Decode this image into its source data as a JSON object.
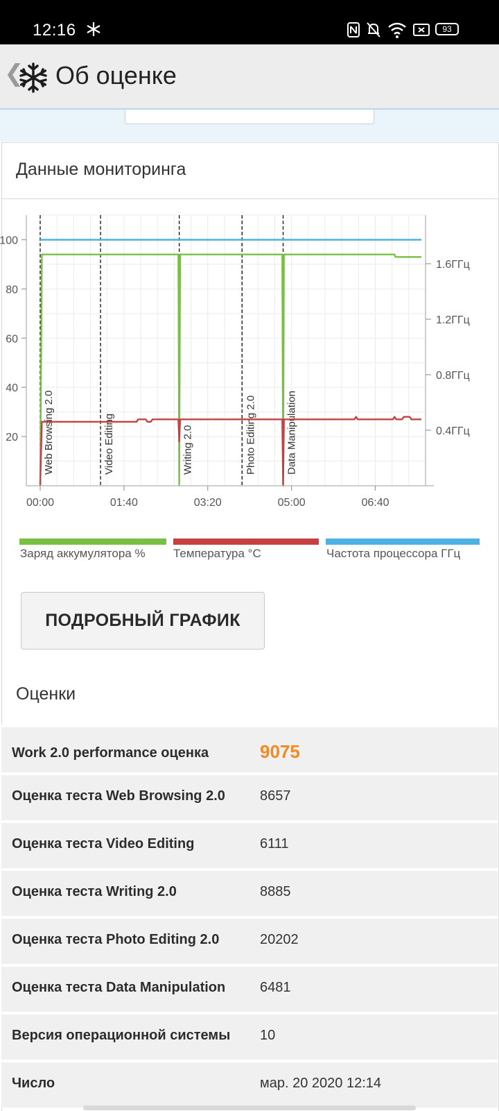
{
  "status_bar": {
    "time": "12:16",
    "battery": "93"
  },
  "app_bar": {
    "back_glyph": "❮",
    "title": "Об оценке"
  },
  "monitoring": {
    "heading": "Данные мониторинга",
    "detail_button": "ПОДРОБНЫЙ ГРАФИК"
  },
  "chart_data": {
    "type": "line",
    "x_ticks": [
      "00:00",
      "01:40",
      "03:20",
      "05:00",
      "06:40"
    ],
    "x_range_seconds": [
      0,
      460
    ],
    "y_left_ticks": [
      "100",
      "80",
      "60",
      "40",
      "20"
    ],
    "y_left_range": [
      0,
      110
    ],
    "y_right_ticks": [
      "1.6ГГц",
      "1.2ГГц",
      "0.8ГГц",
      "0.4ГГц"
    ],
    "y_right_range_ghz": [
      0,
      1.95
    ],
    "grid": true,
    "markers": [
      {
        "label": "Web Browsing 2.0",
        "t": 0
      },
      {
        "label": "Video Editing",
        "t": 72
      },
      {
        "label": "Writing 2.0",
        "t": 166
      },
      {
        "label": "Photo Editing 2.0",
        "t": 241
      },
      {
        "label": "Data Manipulation",
        "t": 290
      }
    ],
    "series": [
      {
        "name": "Заряд аккумулятора %",
        "color": "#77c044",
        "points": [
          [
            0,
            0
          ],
          [
            2,
            94
          ],
          [
            165,
            94
          ],
          [
            166,
            0
          ],
          [
            167,
            94
          ],
          [
            289,
            94
          ],
          [
            290,
            0
          ],
          [
            291,
            94
          ],
          [
            423,
            94
          ],
          [
            424,
            93
          ],
          [
            455,
            93
          ]
        ]
      },
      {
        "name": "Температура °C",
        "color": "#c64040",
        "points": [
          [
            0,
            0
          ],
          [
            2,
            26
          ],
          [
            115,
            26
          ],
          [
            117,
            27
          ],
          [
            126,
            27
          ],
          [
            128,
            26
          ],
          [
            132,
            26
          ],
          [
            134,
            27
          ],
          [
            165,
            27
          ],
          [
            166,
            18
          ],
          [
            167,
            27
          ],
          [
            289,
            27
          ],
          [
            290,
            0
          ],
          [
            291,
            27
          ],
          [
            375,
            27
          ],
          [
            377,
            28
          ],
          [
            379,
            27
          ],
          [
            421,
            27
          ],
          [
            423,
            28
          ],
          [
            425,
            27
          ],
          [
            432,
            27
          ],
          [
            434,
            28
          ],
          [
            441,
            28
          ],
          [
            443,
            27
          ],
          [
            455,
            27
          ]
        ]
      },
      {
        "name": "Частота процессора ГГц",
        "color": "#4bb2e3",
        "points": [
          [
            0,
            100
          ],
          [
            455,
            100
          ]
        ]
      }
    ]
  },
  "scores_section": {
    "heading": "Оценки",
    "rows": [
      {
        "label": "Work 2.0 performance оценка",
        "value": "9075"
      },
      {
        "label": "Оценка теста Web Browsing 2.0",
        "value": "8657"
      },
      {
        "label": "Оценка теста Video Editing",
        "value": "6111"
      },
      {
        "label": "Оценка теста Writing 2.0",
        "value": "8885"
      },
      {
        "label": "Оценка теста Photo Editing 2.0",
        "value": "20202"
      },
      {
        "label": "Оценка теста Data Manipulation",
        "value": "6481"
      },
      {
        "label": "Версия операционной системы",
        "value": "10"
      },
      {
        "label": "Число",
        "value": "мар. 20 2020 12:14"
      }
    ]
  }
}
